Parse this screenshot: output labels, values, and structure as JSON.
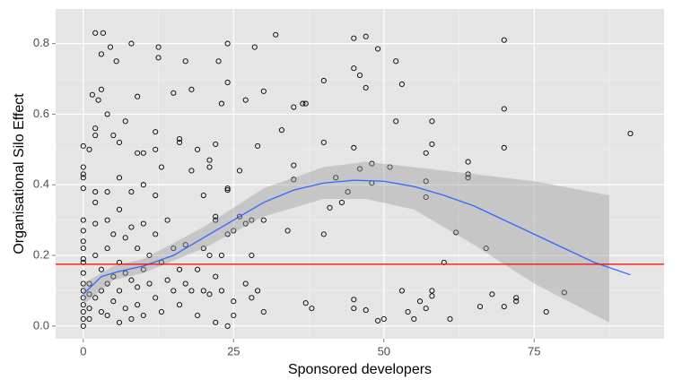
{
  "chart_data": {
    "type": "scatter",
    "x_label": "Sponsored developers",
    "y_label": "Organisational Silo Effect",
    "xlim": [
      -4.6,
      96.6
    ],
    "ylim": [
      -0.036,
      0.898
    ],
    "xticks": [
      0,
      25,
      50,
      75
    ],
    "yticks": [
      {
        "value": 0,
        "label": "0.0"
      },
      0.2,
      0.4,
      0.6,
      0.8
    ],
    "grid": true,
    "panel_color": "#e5e5e5",
    "point_color": "#000000",
    "x": [
      2,
      3.3,
      4.5,
      5.5,
      8,
      3,
      1.5,
      3,
      2.5,
      12.5,
      12.5,
      17,
      15,
      18,
      22.5,
      24,
      24,
      23,
      28.5,
      30,
      32,
      27,
      35,
      37,
      36.5,
      40,
      45,
      47,
      45,
      46,
      47,
      49,
      52,
      53,
      70,
      70,
      91,
      52,
      58,
      58,
      57,
      70,
      64,
      64,
      64,
      57,
      57,
      51,
      48,
      46,
      45,
      42,
      44,
      48,
      43,
      40,
      41,
      40,
      35,
      35,
      34,
      37,
      38,
      33,
      29,
      24,
      24,
      22,
      25,
      26,
      26,
      27,
      28,
      30,
      22,
      22,
      20,
      21,
      21,
      19,
      16,
      16,
      12,
      12,
      9,
      10,
      9,
      7,
      6,
      5,
      4,
      2,
      2,
      1,
      0,
      0,
      0,
      0,
      0,
      0,
      0,
      0,
      0,
      0,
      0,
      0,
      0,
      0,
      0,
      0,
      0,
      0,
      0,
      1,
      1,
      1,
      1,
      2,
      2,
      2,
      2,
      2,
      3,
      3,
      3,
      4,
      4,
      4,
      4,
      4,
      5,
      5,
      5,
      6,
      6,
      6,
      6,
      6,
      7,
      7,
      7,
      8,
      8,
      8,
      8,
      9,
      9,
      9,
      10,
      10,
      10,
      10,
      11,
      11,
      12,
      12,
      12,
      13,
      13,
      13,
      14,
      14,
      15,
      15,
      16,
      16,
      17,
      17,
      18,
      18,
      19,
      19,
      20,
      20,
      21,
      21,
      22,
      22,
      23,
      23,
      24,
      24,
      25,
      25,
      27,
      28,
      28,
      29,
      30,
      50,
      49,
      45,
      45,
      47,
      53,
      54,
      55,
      56,
      57,
      58,
      58,
      60,
      61,
      62,
      66,
      67,
      68,
      70,
      72,
      72,
      77,
      80
    ],
    "y": [
      0.83,
      0.83,
      0.79,
      0.75,
      0.8,
      0.77,
      0.655,
      0.67,
      0.64,
      0.79,
      0.76,
      0.75,
      0.66,
      0.67,
      0.75,
      0.8,
      0.69,
      0.63,
      0.79,
      0.665,
      0.825,
      0.64,
      0.62,
      0.63,
      0.63,
      0.695,
      0.815,
      0.82,
      0.73,
      0.71,
      0.675,
      0.785,
      0.75,
      0.685,
      0.81,
      0.615,
      0.545,
      0.58,
      0.58,
      0.515,
      0.49,
      0.505,
      0.465,
      0.43,
      0.42,
      0.41,
      0.365,
      0.45,
      0.46,
      0.445,
      0.505,
      0.42,
      0.38,
      0.405,
      0.35,
      0.52,
      0.335,
      0.26,
      0.455,
      0.415,
      0.27,
      0.065,
      0.05,
      0.555,
      0.51,
      0.385,
      0.39,
      0.515,
      0.27,
      0.44,
      0.31,
      0.29,
      0.3,
      0.3,
      0.3,
      0.31,
      0.37,
      0.47,
      0.45,
      0.5,
      0.53,
      0.52,
      0.55,
      0.5,
      0.65,
      0.49,
      0.49,
      0.58,
      0.52,
      0.54,
      0.6,
      0.56,
      0.54,
      0.5,
      0.51,
      0.45,
      0.43,
      0.42,
      0.39,
      0.3,
      0.27,
      0.24,
      0.22,
      0.19,
      0.18,
      0.15,
      0.12,
      0.1,
      0.08,
      0.06,
      0.04,
      0.02,
      0,
      0.12,
      0.09,
      0.05,
      0.02,
      0.38,
      0.35,
      0.29,
      0.2,
      0.08,
      0.16,
      0.1,
      0.04,
      0.38,
      0.3,
      0.22,
      0.12,
      0.03,
      0.26,
      0.14,
      0.07,
      0.42,
      0.33,
      0.18,
      0.1,
      0.01,
      0.25,
      0.15,
      0.05,
      0.38,
      0.28,
      0.13,
      0.02,
      0.22,
      0.11,
      0.06,
      0.4,
      0.29,
      0.16,
      0.03,
      0.2,
      0.12,
      0.37,
      0.26,
      0.08,
      0.45,
      0.18,
      0.04,
      0.3,
      0.13,
      0.22,
      0.1,
      0.16,
      0.06,
      0.23,
      0.12,
      0.44,
      0.1,
      0.16,
      0.03,
      0.22,
      0.1,
      0.09,
      0.2,
      0.14,
      0.01,
      0.2,
      0.1,
      0.26,
      0,
      0.03,
      0.07,
      0.12,
      0.08,
      0.2,
      0.1,
      0.04,
      0.02,
      0.015,
      0.075,
      0.05,
      0.045,
      0.1,
      0.04,
      0.02,
      0.07,
      0.05,
      0.1,
      0.085,
      0.18,
      0.02,
      0.265,
      0.055,
      0.22,
      0.09,
      0.055,
      0.08,
      0.07,
      0.04,
      0.095
    ],
    "band": {
      "color": "#999999",
      "x": [
        0,
        5,
        10,
        20,
        30,
        40,
        47,
        55,
        65,
        75,
        87.5
      ],
      "lower": [
        0.06,
        0.13,
        0.15,
        0.22,
        0.31,
        0.36,
        0.36,
        0.33,
        0.23,
        0.12,
        0.01
      ],
      "upper": [
        0.12,
        0.17,
        0.19,
        0.28,
        0.39,
        0.45,
        0.465,
        0.45,
        0.43,
        0.41,
        0.37
      ]
    },
    "smooth": {
      "color": "#3366ff",
      "x": [
        0,
        3,
        6,
        10,
        15,
        20,
        25,
        30,
        35,
        40,
        45,
        50,
        55,
        60,
        65,
        70,
        75,
        80,
        85,
        91
      ],
      "y": [
        0.09,
        0.14,
        0.155,
        0.17,
        0.2,
        0.25,
        0.3,
        0.35,
        0.385,
        0.405,
        0.413,
        0.41,
        0.395,
        0.37,
        0.34,
        0.3,
        0.26,
        0.22,
        0.18,
        0.145
      ]
    },
    "hline": {
      "value": 0.175,
      "color": "#ff0000"
    }
  }
}
